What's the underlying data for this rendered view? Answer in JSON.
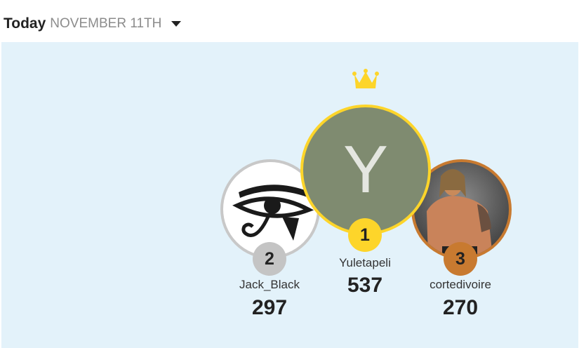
{
  "header": {
    "title": "Today",
    "date": "NOVEMBER 11TH",
    "dropdown_icon": "caret-down-icon"
  },
  "colors": {
    "panel_bg": "#e3f2fa",
    "gold": "#fdd52a",
    "silver": "#c4c4c4",
    "bronze": "#c87a30"
  },
  "leaders": [
    {
      "rank": "1",
      "name": "Yuletapeli",
      "score": "537",
      "avatar_letter": "Y",
      "avatar_bg": "#7f8b70"
    },
    {
      "rank": "2",
      "name": "Jack_Black",
      "score": "297",
      "avatar": "eye-of-horus-image"
    },
    {
      "rank": "3",
      "name": "cortedivoire",
      "score": "270",
      "avatar": "wrestler-photo"
    }
  ]
}
